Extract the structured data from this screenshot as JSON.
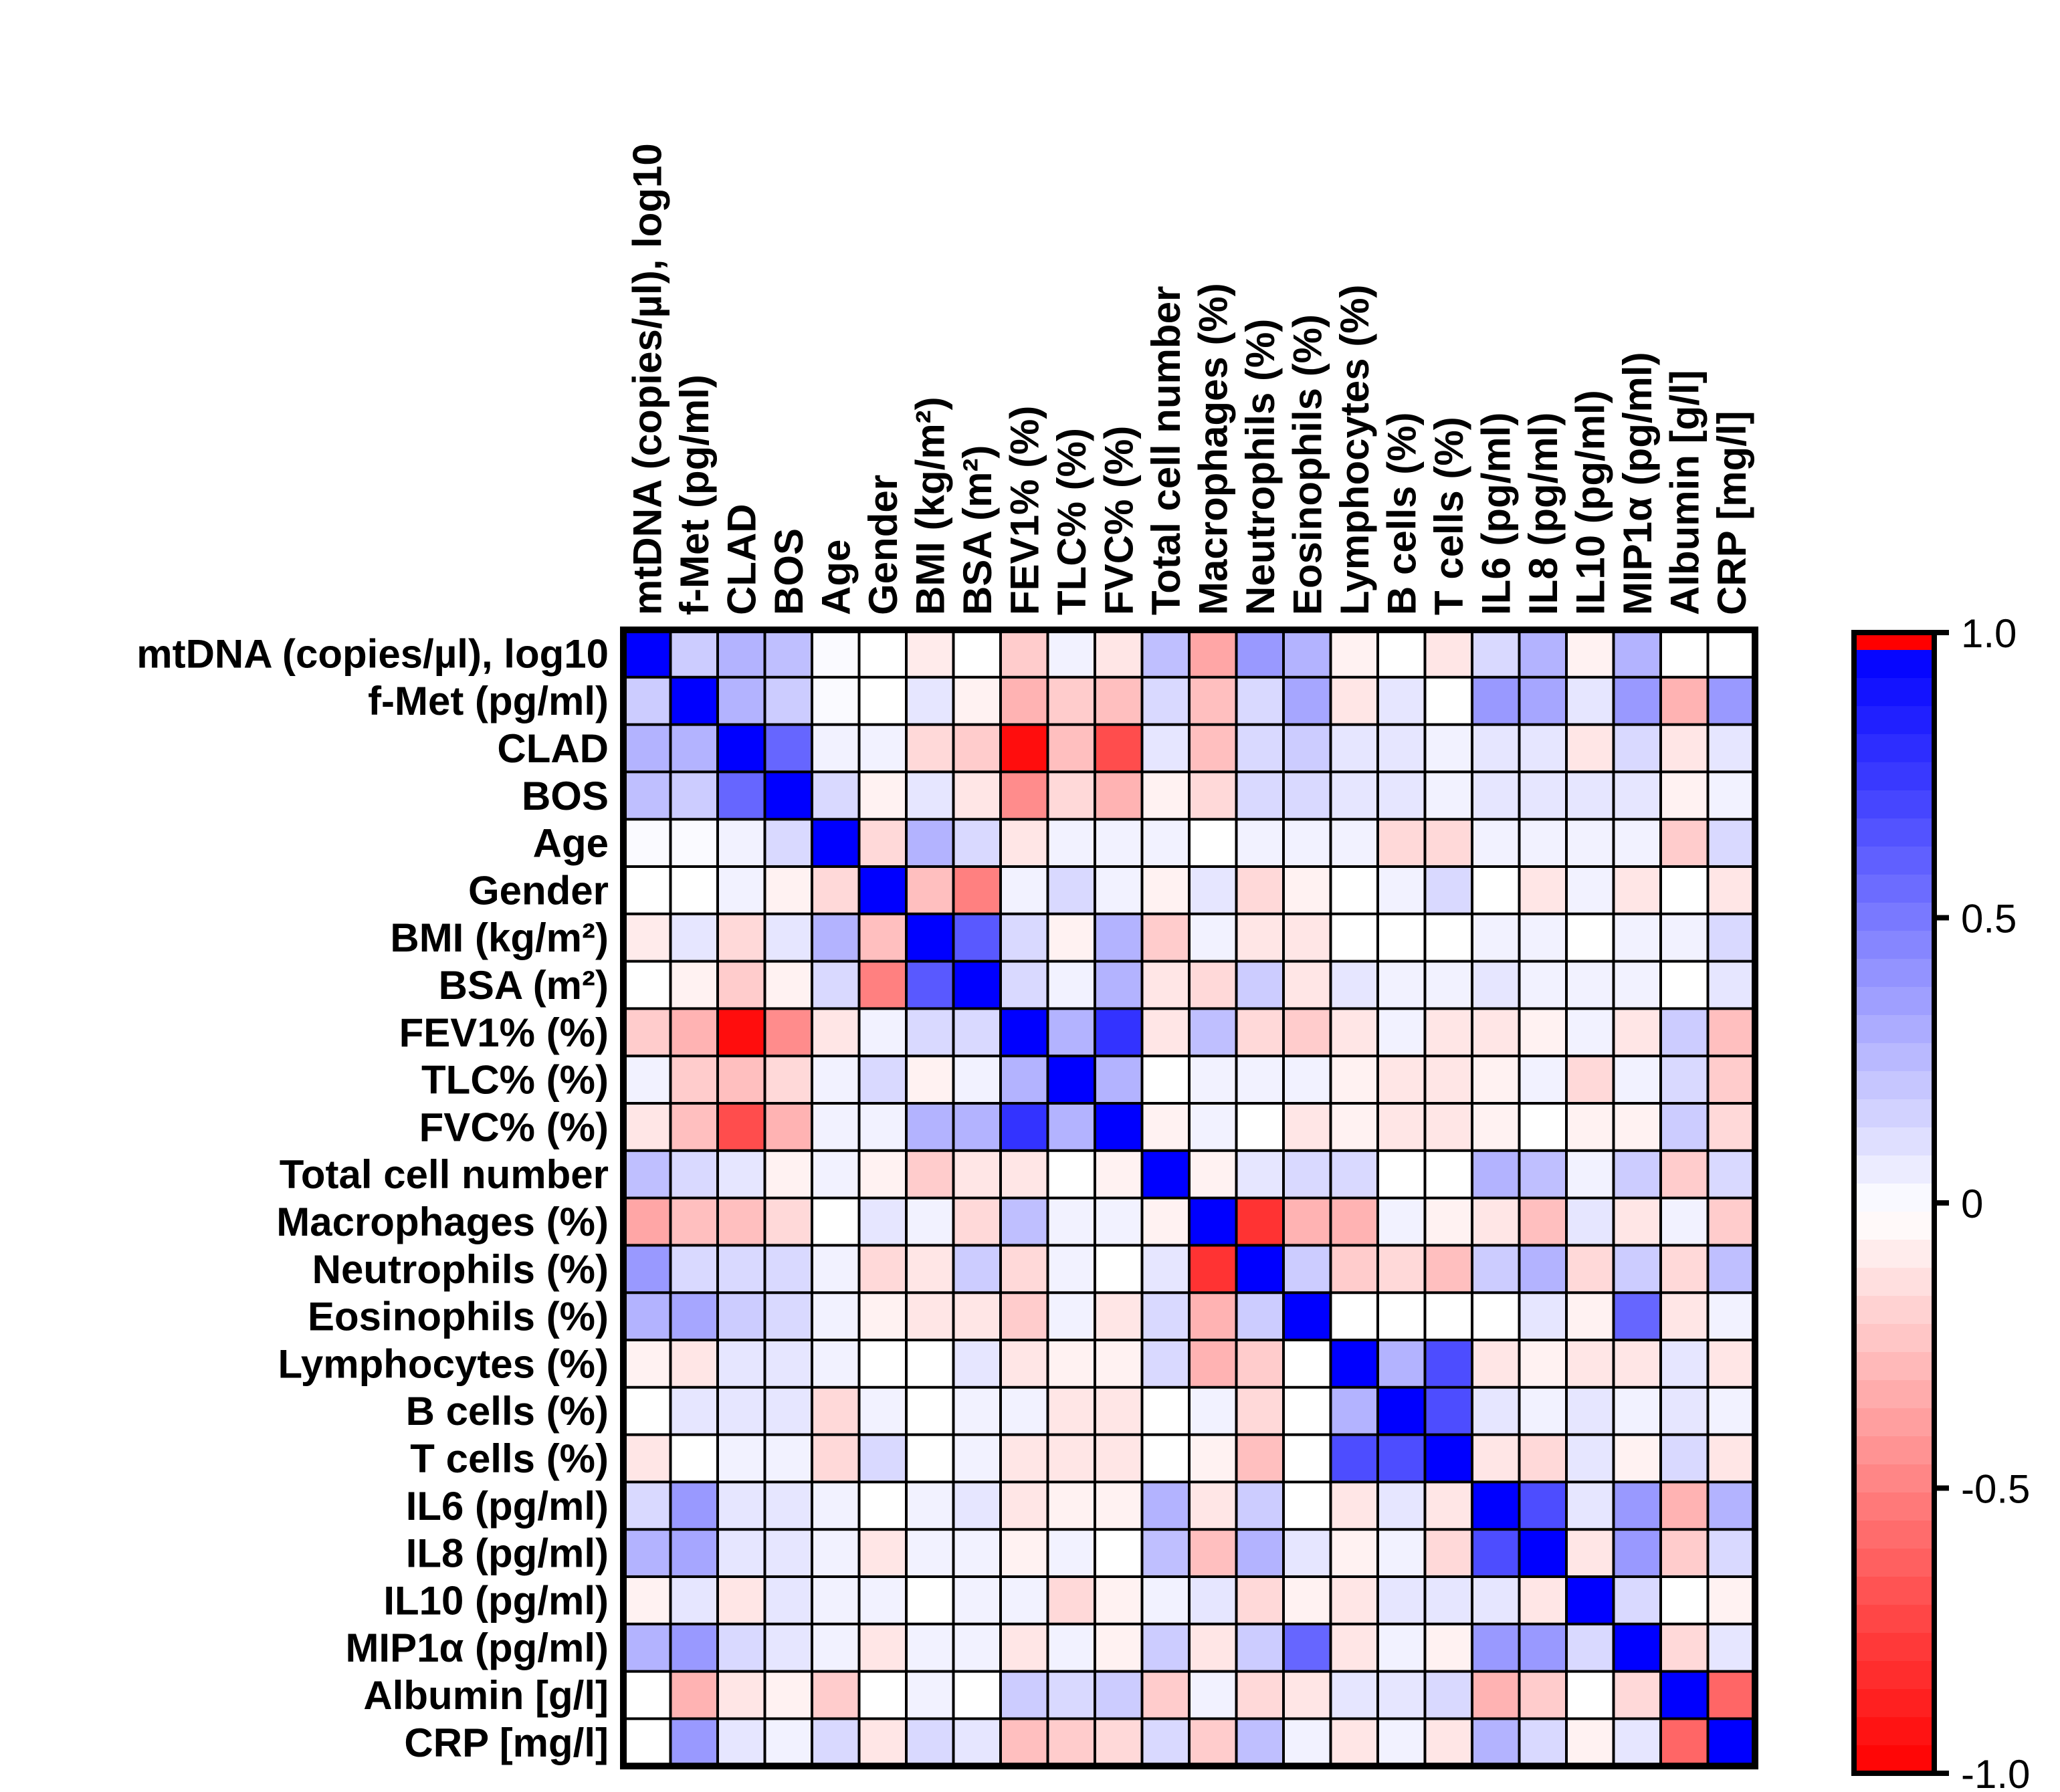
{
  "chart_data": {
    "type": "heatmap",
    "title": "",
    "variables": [
      "mtDNA (copies/µl), log10",
      "f-Met (pg/ml)",
      "CLAD",
      "BOS",
      "Age",
      "Gender",
      "BMI (kg/m²)",
      "BSA (m²)",
      "FEV1% (%)",
      "TLC% (%)",
      "FVC% (%)",
      "Total cell number",
      "Macrophages (%)",
      "Neutrophils (%)",
      "Eosinophils (%)",
      "Lymphocytes (%)",
      "B cells (%)",
      "T cells (%)",
      "IL6 (pg/ml)",
      "IL8 (pg/ml)",
      "IL10 (pg/ml)",
      "MIP1α (pg/ml)",
      "Albumin [g/l]",
      "CRP [mg/l]"
    ],
    "values": [
      [
        1.0,
        0.2,
        0.3,
        0.25,
        0.02,
        0.0,
        -0.08,
        0.0,
        -0.2,
        0.05,
        -0.1,
        0.25,
        -0.35,
        0.4,
        0.3,
        -0.05,
        0.0,
        -0.1,
        0.15,
        0.3,
        -0.05,
        0.3,
        0.0,
        0.0
      ],
      [
        0.2,
        1.0,
        0.3,
        0.2,
        0.02,
        0.0,
        0.1,
        -0.05,
        -0.3,
        -0.2,
        -0.25,
        0.15,
        -0.25,
        0.15,
        0.35,
        -0.1,
        0.1,
        0.0,
        0.4,
        0.35,
        0.1,
        0.4,
        -0.3,
        0.4
      ],
      [
        0.3,
        0.3,
        1.0,
        0.6,
        0.05,
        0.05,
        -0.15,
        -0.2,
        -0.95,
        -0.25,
        -0.7,
        0.1,
        -0.25,
        0.15,
        0.2,
        0.1,
        0.1,
        0.05,
        0.1,
        0.1,
        -0.1,
        0.15,
        -0.1,
        0.1
      ],
      [
        0.25,
        0.2,
        0.6,
        1.0,
        0.15,
        -0.05,
        0.1,
        -0.1,
        -0.45,
        -0.15,
        -0.3,
        -0.05,
        -0.15,
        0.15,
        0.15,
        0.1,
        0.1,
        0.05,
        0.1,
        0.1,
        0.1,
        0.1,
        -0.05,
        0.05
      ],
      [
        0.02,
        0.02,
        0.05,
        0.15,
        1.0,
        -0.15,
        0.3,
        0.15,
        -0.1,
        0.05,
        0.05,
        0.05,
        0.0,
        0.05,
        0.05,
        0.05,
        -0.15,
        -0.15,
        0.05,
        0.05,
        0.05,
        0.05,
        -0.2,
        0.15
      ],
      [
        0.0,
        0.0,
        0.05,
        -0.05,
        -0.15,
        1.0,
        -0.25,
        -0.5,
        0.05,
        0.15,
        0.05,
        -0.05,
        0.1,
        -0.15,
        -0.05,
        0.0,
        0.05,
        0.15,
        0.0,
        -0.1,
        0.05,
        -0.1,
        0.0,
        -0.1
      ],
      [
        -0.08,
        0.1,
        -0.15,
        0.1,
        0.3,
        -0.25,
        1.0,
        0.65,
        0.15,
        -0.05,
        0.3,
        -0.2,
        0.05,
        -0.1,
        -0.1,
        0.0,
        0.0,
        0.0,
        0.05,
        0.05,
        0.0,
        0.05,
        0.05,
        0.15
      ],
      [
        0.0,
        -0.05,
        -0.2,
        -0.05,
        0.15,
        -0.5,
        0.65,
        1.0,
        0.15,
        0.05,
        0.3,
        -0.1,
        -0.15,
        0.2,
        -0.1,
        0.1,
        0.05,
        0.05,
        0.1,
        0.05,
        0.05,
        0.05,
        0.0,
        0.1
      ],
      [
        -0.2,
        -0.3,
        -0.95,
        -0.45,
        -0.1,
        0.05,
        0.15,
        0.15,
        1.0,
        0.3,
        0.8,
        -0.1,
        0.25,
        -0.15,
        -0.2,
        -0.1,
        0.05,
        -0.1,
        -0.1,
        -0.05,
        0.05,
        -0.1,
        0.2,
        -0.25
      ],
      [
        0.05,
        -0.2,
        -0.25,
        -0.15,
        0.05,
        0.15,
        -0.05,
        0.05,
        0.3,
        1.0,
        0.3,
        0.0,
        0.05,
        0.05,
        0.05,
        -0.05,
        -0.1,
        -0.1,
        -0.05,
        0.05,
        -0.15,
        0.05,
        0.15,
        -0.2
      ],
      [
        -0.1,
        -0.25,
        -0.7,
        -0.3,
        0.05,
        0.05,
        0.3,
        0.3,
        0.8,
        0.3,
        1.0,
        -0.05,
        0.05,
        0.0,
        -0.1,
        -0.05,
        -0.1,
        -0.1,
        -0.05,
        0.0,
        -0.05,
        -0.05,
        0.2,
        -0.15
      ],
      [
        0.25,
        0.15,
        0.1,
        -0.05,
        0.05,
        -0.05,
        -0.2,
        -0.1,
        -0.1,
        0.0,
        -0.05,
        1.0,
        -0.05,
        0.1,
        0.15,
        0.15,
        0.0,
        0.0,
        0.3,
        0.25,
        0.05,
        0.2,
        -0.2,
        0.15
      ],
      [
        -0.35,
        -0.25,
        -0.25,
        -0.15,
        0.0,
        0.1,
        0.05,
        -0.15,
        0.25,
        0.05,
        0.05,
        -0.05,
        1.0,
        -0.8,
        -0.3,
        -0.3,
        0.05,
        -0.05,
        -0.1,
        -0.25,
        0.1,
        -0.1,
        0.05,
        -0.2
      ],
      [
        0.4,
        0.15,
        0.15,
        0.15,
        0.05,
        -0.15,
        -0.1,
        0.2,
        -0.15,
        0.05,
        0.0,
        0.1,
        -0.8,
        1.0,
        0.2,
        -0.2,
        -0.15,
        -0.25,
        0.2,
        0.3,
        -0.15,
        0.2,
        -0.15,
        0.25
      ],
      [
        0.3,
        0.35,
        0.2,
        0.15,
        0.05,
        -0.05,
        -0.1,
        -0.1,
        -0.2,
        0.05,
        -0.1,
        0.15,
        -0.3,
        0.2,
        1.0,
        0.0,
        0.0,
        0.0,
        0.0,
        0.1,
        -0.05,
        0.6,
        -0.1,
        0.05
      ],
      [
        -0.05,
        -0.1,
        0.1,
        0.1,
        0.05,
        0.0,
        0.0,
        0.1,
        -0.1,
        -0.05,
        -0.05,
        0.15,
        -0.3,
        -0.2,
        0.0,
        1.0,
        0.3,
        0.7,
        -0.1,
        -0.05,
        -0.1,
        -0.1,
        0.1,
        -0.1
      ],
      [
        0.0,
        0.1,
        0.1,
        0.1,
        -0.15,
        0.05,
        0.0,
        0.05,
        0.05,
        -0.1,
        -0.1,
        0.0,
        0.05,
        -0.15,
        0.0,
        0.3,
        1.0,
        0.7,
        0.1,
        0.05,
        0.1,
        0.05,
        0.1,
        0.05
      ],
      [
        -0.1,
        0.0,
        0.05,
        0.05,
        -0.15,
        0.15,
        0.0,
        0.05,
        -0.1,
        -0.1,
        -0.1,
        0.0,
        -0.05,
        -0.25,
        0.0,
        0.7,
        0.7,
        1.0,
        -0.1,
        -0.15,
        0.1,
        -0.05,
        0.15,
        -0.1
      ],
      [
        0.15,
        0.4,
        0.1,
        0.1,
        0.05,
        0.0,
        0.05,
        0.1,
        -0.1,
        -0.05,
        -0.05,
        0.3,
        -0.1,
        0.2,
        0.0,
        -0.1,
        0.1,
        -0.1,
        1.0,
        0.7,
        0.1,
        0.4,
        -0.3,
        0.3
      ],
      [
        0.3,
        0.35,
        0.1,
        0.1,
        0.05,
        -0.1,
        0.05,
        0.05,
        -0.05,
        0.05,
        0.0,
        0.25,
        -0.25,
        0.3,
        0.1,
        -0.05,
        0.05,
        -0.15,
        0.7,
        1.0,
        -0.1,
        0.4,
        -0.2,
        0.15
      ],
      [
        -0.05,
        0.1,
        -0.1,
        0.1,
        0.05,
        0.05,
        0.0,
        0.05,
        0.05,
        -0.15,
        -0.05,
        0.05,
        0.1,
        -0.15,
        -0.05,
        -0.1,
        0.1,
        0.1,
        0.1,
        -0.1,
        1.0,
        0.15,
        0.0,
        -0.05
      ],
      [
        0.3,
        0.4,
        0.15,
        0.1,
        0.05,
        -0.1,
        0.05,
        0.05,
        -0.1,
        0.05,
        -0.05,
        0.2,
        -0.1,
        0.2,
        0.6,
        -0.1,
        0.05,
        -0.05,
        0.4,
        0.4,
        0.15,
        1.0,
        -0.15,
        0.1
      ],
      [
        0.0,
        -0.3,
        -0.1,
        -0.05,
        -0.2,
        0.0,
        0.05,
        0.0,
        0.2,
        0.15,
        0.2,
        -0.2,
        0.05,
        -0.15,
        -0.1,
        0.1,
        0.1,
        0.15,
        -0.3,
        -0.2,
        0.0,
        -0.15,
        1.0,
        -0.6
      ],
      [
        0.0,
        0.4,
        0.1,
        0.05,
        0.15,
        -0.1,
        0.15,
        0.1,
        -0.25,
        -0.2,
        -0.15,
        0.15,
        -0.2,
        0.25,
        0.05,
        -0.1,
        0.05,
        -0.1,
        0.3,
        0.15,
        -0.05,
        0.1,
        -0.6,
        1.0
      ]
    ],
    "colorbar": {
      "min": -1.0,
      "max": 1.0,
      "ticks": [
        "1.0",
        "0.5",
        "0",
        "-0.5",
        "-1.0"
      ],
      "tick_values": [
        1.0,
        0.5,
        0,
        -0.5,
        -1.0
      ],
      "negative_color": "#ff0000",
      "zero_color": "#ffffff",
      "positive_color": "#0000ff",
      "top_cap_color": "#ff0000"
    },
    "grid": true,
    "legend": "right"
  }
}
